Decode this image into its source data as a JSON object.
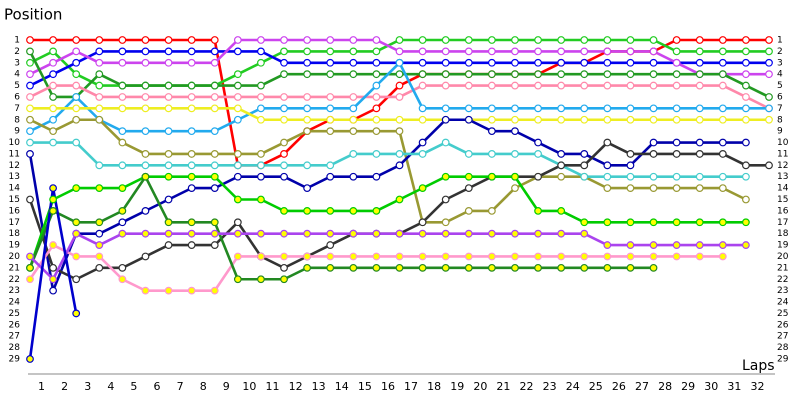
{
  "chart_data": {
    "type": "lap-chart",
    "y_label": "Position",
    "x_label": "Laps",
    "x": [
      0,
      1,
      2,
      3,
      4,
      5,
      6,
      7,
      8,
      9,
      10,
      11,
      12,
      13,
      14,
      15,
      16,
      17,
      18,
      19,
      20,
      21,
      22,
      23,
      24,
      25,
      26,
      27,
      28,
      29,
      30,
      31,
      32
    ],
    "xlim": [
      0,
      32
    ],
    "xticks": [
      {
        "value": 0.5,
        "label": "1"
      },
      {
        "value": 1.5,
        "label": "2"
      },
      {
        "value": 2.5,
        "label": "3"
      },
      {
        "value": 3.5,
        "label": "4"
      },
      {
        "value": 4.5,
        "label": "5"
      },
      {
        "value": 5.5,
        "label": "6"
      },
      {
        "value": 6.5,
        "label": "7"
      },
      {
        "value": 7.5,
        "label": "8"
      },
      {
        "value": 8.5,
        "label": "9"
      },
      {
        "value": 9.5,
        "label": "10"
      },
      {
        "value": 10.5,
        "label": "11"
      },
      {
        "value": 11.5,
        "label": "12"
      },
      {
        "value": 12.5,
        "label": "13"
      },
      {
        "value": 13.5,
        "label": "14"
      },
      {
        "value": 14.5,
        "label": "15"
      },
      {
        "value": 15.5,
        "label": "16"
      },
      {
        "value": 16.5,
        "label": "17"
      },
      {
        "value": 17.5,
        "label": "18"
      },
      {
        "value": 18.5,
        "label": "19"
      },
      {
        "value": 19.5,
        "label": "20"
      },
      {
        "value": 20.5,
        "label": "21"
      },
      {
        "value": 21.5,
        "label": "22"
      },
      {
        "value": 22.5,
        "label": "23"
      },
      {
        "value": 23.5,
        "label": "24"
      },
      {
        "value": 24.5,
        "label": "25"
      },
      {
        "value": 25.5,
        "label": "26"
      },
      {
        "value": 26.5,
        "label": "27"
      },
      {
        "value": 27.5,
        "label": "28"
      },
      {
        "value": 28.5,
        "label": "29"
      },
      {
        "value": 29.5,
        "label": "30"
      },
      {
        "value": 30.5,
        "label": "31"
      },
      {
        "value": 31.5,
        "label": "32"
      }
    ],
    "ylim": [
      1,
      29
    ],
    "yticks": [
      1,
      2,
      3,
      4,
      5,
      6,
      7,
      8,
      9,
      10,
      11,
      12,
      13,
      14,
      15,
      16,
      17,
      18,
      19,
      20,
      21,
      22,
      23,
      24,
      25,
      26,
      27,
      28,
      29
    ],
    "series": [
      {
        "color": "#ff0000",
        "values": [
          1,
          1,
          1,
          1,
          1,
          1,
          1,
          1,
          1,
          12,
          12,
          11,
          9,
          8,
          8,
          7,
          5,
          4,
          4,
          4,
          4,
          4,
          4,
          3,
          3,
          2,
          2,
          2,
          1,
          1,
          1,
          1,
          1
        ]
      },
      {
        "color": "#22cc22",
        "values": [
          3,
          2,
          4,
          5,
          5,
          5,
          5,
          5,
          5,
          4,
          3,
          2,
          2,
          2,
          2,
          2,
          1,
          1,
          1,
          1,
          1,
          1,
          1,
          1,
          1,
          1,
          1,
          1,
          2,
          2,
          2,
          2,
          2
        ]
      },
      {
        "color": "#0000ee",
        "values": [
          5,
          4,
          3,
          2,
          2,
          2,
          2,
          2,
          2,
          2,
          2,
          3,
          3,
          3,
          3,
          3,
          3,
          3,
          3,
          3,
          3,
          3,
          3,
          3,
          3,
          3,
          3,
          3,
          3,
          3,
          3,
          3,
          3
        ]
      },
      {
        "color": "#cc44ee",
        "values": [
          4,
          3,
          2,
          3,
          3,
          3,
          3,
          3,
          3,
          1,
          1,
          1,
          1,
          1,
          1,
          1,
          2,
          2,
          2,
          2,
          2,
          2,
          2,
          2,
          2,
          2,
          2,
          2,
          3,
          4,
          4,
          4,
          4
        ]
      },
      {
        "color": "#229922",
        "values": [
          2,
          6,
          6,
          4,
          5,
          5,
          5,
          5,
          5,
          5,
          5,
          4,
          4,
          4,
          4,
          4,
          4,
          4,
          4,
          4,
          4,
          4,
          4,
          4,
          4,
          4,
          4,
          4,
          4,
          4,
          4,
          5,
          6
        ]
      },
      {
        "color": "#ff88aa",
        "values": [
          6,
          5,
          5,
          6,
          6,
          6,
          6,
          6,
          6,
          6,
          6,
          6,
          6,
          6,
          6,
          6,
          6,
          5,
          5,
          5,
          5,
          5,
          5,
          5,
          5,
          5,
          5,
          5,
          5,
          5,
          5,
          6,
          7
        ]
      },
      {
        "color": "#22aaee",
        "values": [
          9,
          8,
          6,
          8,
          9,
          9,
          9,
          9,
          9,
          8,
          7,
          7,
          7,
          7,
          7,
          5,
          3,
          7,
          7,
          7,
          7,
          7,
          7,
          7,
          7,
          7,
          7,
          7,
          7,
          7,
          7,
          7,
          7
        ]
      },
      {
        "color": "#999933",
        "values": [
          8,
          9,
          8,
          8,
          10,
          11,
          11,
          11,
          11,
          11,
          11,
          10,
          9,
          9,
          9,
          9,
          9,
          17,
          17,
          16,
          16,
          14,
          13,
          13,
          13,
          14,
          14,
          14,
          14,
          14,
          14,
          15,
          null
        ]
      },
      {
        "color": "#eeee22",
        "values": [
          7,
          7,
          7,
          7,
          7,
          7,
          7,
          7,
          7,
          7,
          8,
          8,
          8,
          8,
          8,
          8,
          8,
          8,
          8,
          8,
          8,
          8,
          8,
          8,
          8,
          8,
          8,
          8,
          8,
          8,
          8,
          8,
          8
        ]
      },
      {
        "color": "#0000aa",
        "values": [
          11,
          23,
          18,
          18,
          17,
          16,
          15,
          14,
          14,
          13,
          13,
          13,
          14,
          13,
          13,
          13,
          12,
          10,
          8,
          8,
          9,
          9,
          10,
          11,
          11,
          12,
          12,
          10,
          10,
          10,
          10,
          10,
          null
        ]
      },
      {
        "color": "#44cccc",
        "values": [
          10,
          10,
          10,
          12,
          12,
          12,
          12,
          12,
          12,
          12,
          12,
          12,
          12,
          12,
          11,
          11,
          11,
          11,
          10,
          11,
          11,
          11,
          11,
          12,
          13,
          13,
          13,
          13,
          13,
          13,
          13,
          13,
          null
        ]
      },
      {
        "color": "#333333",
        "values": [
          15,
          21,
          22,
          21,
          21,
          20,
          19,
          19,
          19,
          17,
          20,
          21,
          20,
          19,
          18,
          18,
          18,
          17,
          15,
          14,
          13,
          13,
          13,
          12,
          12,
          10,
          11,
          11,
          11,
          11,
          11,
          12,
          12
        ]
      },
      {
        "color": "#00cc00",
        "marker_fill": "#ffff00",
        "values": [
          21,
          15,
          14,
          14,
          14,
          13,
          13,
          13,
          13,
          15,
          15,
          16,
          16,
          16,
          16,
          16,
          15,
          14,
          13,
          13,
          13,
          13,
          16,
          16,
          17,
          17,
          17,
          17,
          17,
          17,
          17,
          17,
          null
        ]
      },
      {
        "color": "#ff99cc",
        "marker_fill": "#ffff00",
        "values": [
          22,
          19,
          20,
          20,
          22,
          23,
          23,
          23,
          23,
          20,
          20,
          20,
          20,
          20,
          20,
          20,
          20,
          20,
          20,
          20,
          20,
          20,
          20,
          20,
          20,
          20,
          20,
          20,
          20,
          20,
          20,
          null,
          null
        ]
      },
      {
        "color": "#228822",
        "marker_fill": "#ffff00",
        "values": [
          21,
          16,
          17,
          17,
          16,
          13,
          17,
          17,
          17,
          22,
          22,
          22,
          21,
          21,
          21,
          21,
          21,
          21,
          21,
          21,
          21,
          21,
          21,
          21,
          21,
          21,
          21,
          21,
          null,
          null,
          null,
          null,
          null
        ]
      },
      {
        "color": "#aa44ee",
        "marker_fill": "#ffff00",
        "values": [
          20,
          22,
          18,
          19,
          18,
          18,
          18,
          18,
          18,
          18,
          18,
          18,
          18,
          18,
          18,
          18,
          18,
          18,
          18,
          18,
          18,
          18,
          18,
          18,
          18,
          19,
          19,
          19,
          19,
          19,
          19,
          19,
          null
        ]
      },
      {
        "color": "#0000cc",
        "marker_fill": "#ffff00",
        "values": [
          29,
          14,
          25,
          null,
          null,
          null,
          null,
          null,
          null,
          null,
          null,
          null,
          null,
          null,
          null,
          null,
          null,
          null,
          null,
          null,
          null,
          null,
          null,
          null,
          null,
          null,
          null,
          null,
          null,
          null,
          null,
          null,
          null
        ]
      }
    ]
  }
}
